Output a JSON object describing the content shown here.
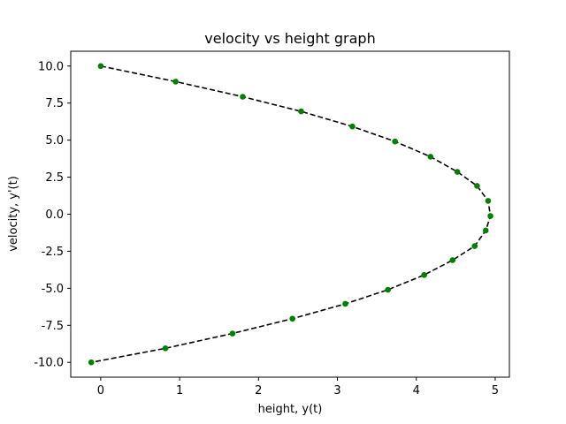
{
  "chart_data": {
    "type": "scatter",
    "title": "velocity vs height graph",
    "xlabel": "height, y(t)",
    "ylabel": "velocity, y'(t)",
    "xlim": [
      -0.38,
      5.18
    ],
    "ylim": [
      -11.0,
      11.0
    ],
    "x_ticks": [
      0,
      1,
      2,
      3,
      4,
      5
    ],
    "y_ticks": [
      -10.0,
      -7.5,
      -5.0,
      -2.5,
      0.0,
      2.5,
      5.0,
      7.5,
      10.0
    ],
    "grid": false,
    "line_color": "#000000",
    "line_style": "dashed",
    "marker_color": "#008000",
    "series": [
      {
        "x": [
          0.0,
          0.95,
          1.8,
          2.54,
          3.19,
          3.73,
          4.18,
          4.52,
          4.77,
          4.91,
          4.94,
          4.88,
          4.74,
          4.46,
          4.1,
          3.64,
          3.1,
          2.43,
          1.67,
          0.82,
          -0.12
        ],
        "y": [
          10.0,
          8.95,
          7.93,
          6.94,
          5.92,
          4.91,
          3.88,
          2.86,
          1.91,
          0.9,
          -0.12,
          -1.1,
          -2.15,
          -3.1,
          -4.1,
          -5.1,
          -6.05,
          -7.05,
          -8.05,
          -9.05,
          -10.0
        ]
      }
    ]
  }
}
